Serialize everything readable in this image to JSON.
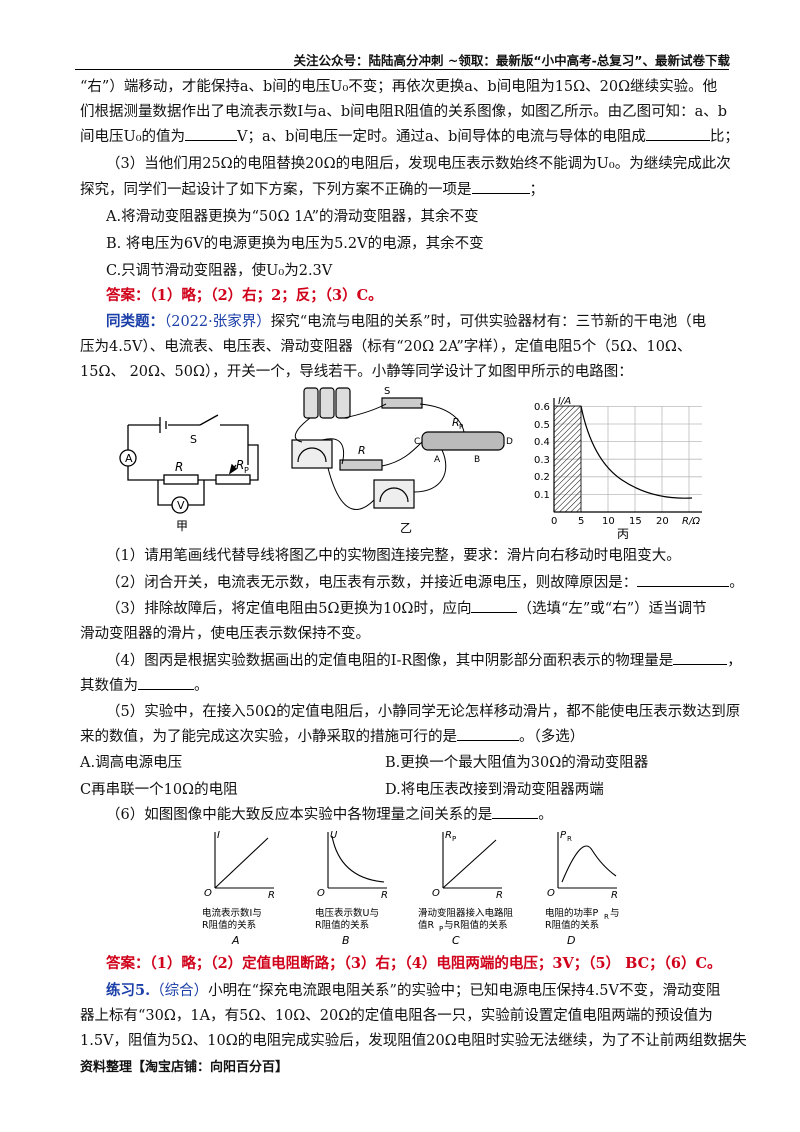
{
  "header": "关注公众号：陆陆高分冲刺 ~领取：最新版“小中高考-总复习”、最新试卷下载",
  "lines": {
    "l1": "“右”）端移动，才能保持a、b间的电压U₀不变；再依次更换a、b间电阻为15Ω、20Ω继续实验。他",
    "l2": "们根据测量数据作出了电流表示数I与a、b间电阻R阻值的关系图像，如图乙所示。由乙图可知：a、b",
    "l3a": "间电压U₀的值为",
    "l3b": "V；a、b间电压一定时。通过a、b间导体的电流与导体的电阻成",
    "l3c": "比；",
    "l4": "（3）当他们用25Ω的电阻替换20Ω的电阻后，发现电压表示数始终不能调为U₀。为继续完成此次",
    "l5a": "探究，同学们一起设计了如下方案，下列方案不正确的一项是",
    "l5b": "；",
    "l6": "A.将滑动变阻器更换为“50Ω 1A”的滑动变阻器，其余不变",
    "l7": "B. 将电压为6V的电源更换为电压为5.2V的电源，其余不变",
    "l8": "C.只调节滑动变阻器，使U₀为2.3V",
    "ans1_label": "答案：",
    "ans1": "（1）略；（2）右；2；反；（3）C。",
    "tl_label": "同类题：",
    "tl_src": "（2022·张家界）",
    "t1": "探究“电流与电阻的关系”时，可供实验器材有：三节新的干电池（电",
    "t2": "压为4.5V）、电流表、电压表、滑动变阻器（标有“20Ω 2A”字样），定值电阻5个（5Ω、10Ω、",
    "t3": "15Ω、 20Ω、50Ω），开关一个，导线若干。小静等同学设计了如图甲所示的电路图：",
    "q1": "（1）请用笔画线代替导线将图乙中的实物图连接完整，要求：滑片向右移动时电阻变大。",
    "q2a": "（2）闭合开关，电流表无示数，电压表有示数，并接近电源电压，则故障原因是：",
    "q2b": "。",
    "q3a": "（3）排除故障后，将定值电阻由5Ω更换为10Ω时，应向",
    "q3b": "（选填“左”或“右”）适当调节",
    "q3c": "滑动变阻器的滑片，使电压表示数保持不变。",
    "q4a": "（4）图丙是根据实验数据画出的定值电阻的I-R图像，其中阴影部分面积表示的物理量是",
    "q4b": "，",
    "q4c": "其数值为",
    "q4d": "。",
    "q5a": "（5）实验中，在接入50Ω的定值电阻后，小静同学无论怎样移动滑片，都不能使电压表示数达到原",
    "q5b": "来的数值，为了能完成这次实验，小静采取的措施可行的是",
    "q5c": "。（多选）",
    "o5A": "A.调高电源电压",
    "o5B": "B.更换一个最大阻值为30Ω的滑动变阻器",
    "o5C": "C再串联一个10Ω的电阻",
    "o5D": "D.将电压表改接到滑动变阻器两端",
    "q6a": "（6）如图图像中能大致反应本实验中各物理量之间关系的是",
    "q6b": "。",
    "ans2_label": "答案：",
    "ans2": "（1）略；（2）定值电阻断路；（3）右；（4）电阻两端的电压；3V；（5） BC；（6）C。",
    "ex_label": "练习5.",
    "ex_tag": "（综合）",
    "e1": "小明在“探充电流跟电阻关系”的实验中；已知电源电压保持4.5V不变，滑动变阻",
    "e2": "器上标有“30Ω，1A，有5Ω、10Ω、20Ω的定值电阻各一只，实验前设置定值电阻两端的预设值为",
    "e3": "1.5V，阻值为5Ω、10Ω的电阻完成实验后，发现阻值20Ω电阻时实验无法继续，为了不让前两组数据失"
  },
  "figures": {
    "jia": {
      "caption": "甲",
      "S": "S",
      "A": "A",
      "V": "V",
      "R": "R",
      "Rp": "R",
      "Rp_sub": "P"
    },
    "yi": {
      "caption": "乙",
      "S": "S",
      "R": "R",
      "Rp": "R",
      "Rp_sub": "P",
      "C": "C",
      "D": "D",
      "A": "A",
      "B": "B"
    },
    "bing": {
      "caption": "丙",
      "ylabel": "I/A",
      "xlabel": "R/Ω",
      "yticks": [
        "0.6",
        "0.5",
        "0.4",
        "0.3",
        "0.2",
        "0.1"
      ],
      "xticks": [
        "0",
        "5",
        "10",
        "15",
        "20"
      ]
    }
  },
  "small_graphs": [
    {
      "letter": "A",
      "y": "I",
      "x": "R",
      "o": "O",
      "desc1": "电流表示数I与",
      "desc2": "R阻值的关系"
    },
    {
      "letter": "B",
      "y": "U",
      "x": "R",
      "o": "O",
      "desc1": "电压表示数U与",
      "desc2": "R阻值的关系"
    },
    {
      "letter": "C",
      "y": "R",
      "y_sub": "P",
      "x": "R",
      "o": "O",
      "desc1": "滑动变阻器接入电路阻",
      "desc2": "值R",
      "desc2_sub": "P",
      "desc2_tail": "与R阻值的关系"
    },
    {
      "letter": "D",
      "y": "P",
      "y_sub": "R",
      "x": "R",
      "o": "O",
      "desc1": "电阻的功率P",
      "desc1_sub": "R",
      "desc1_tail": "与",
      "desc2": "R阻值的关系"
    }
  ],
  "footer": "资料整理【淘宝店铺：向阳百分百】"
}
